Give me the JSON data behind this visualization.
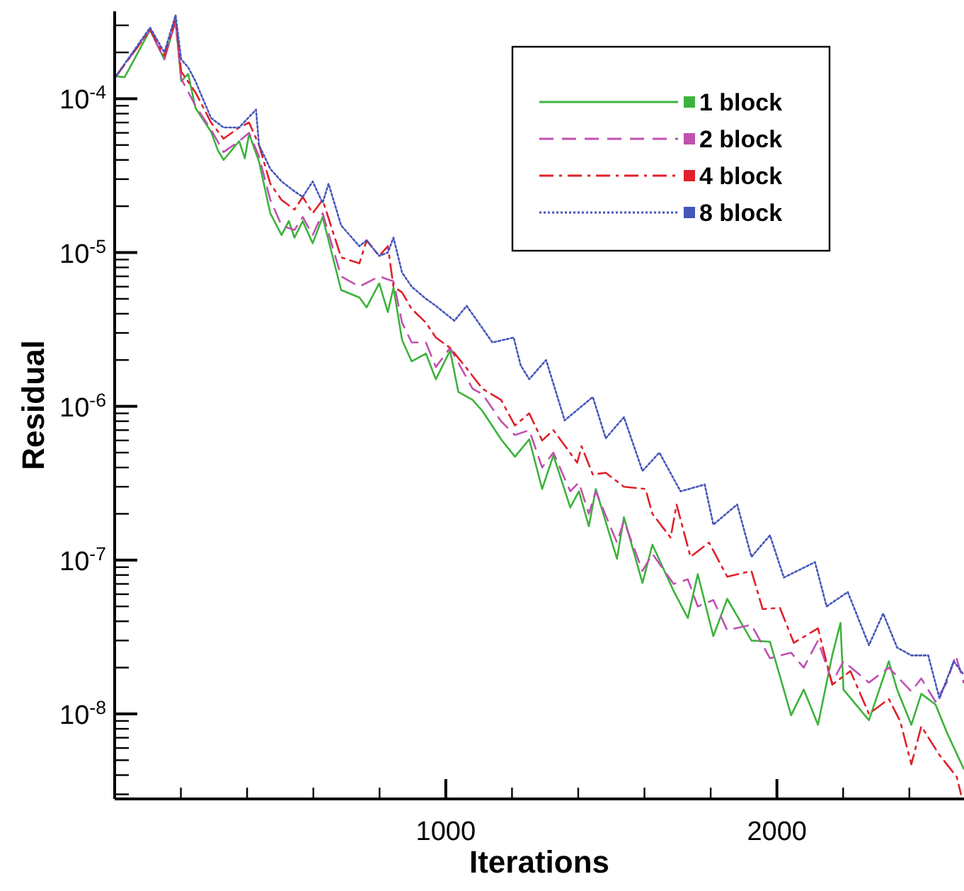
{
  "chart_data": {
    "type": "line",
    "xlabel": "Iterations",
    "ylabel": "Residual",
    "log": "y",
    "grid": false,
    "legend": "top right",
    "marker": "none",
    "xlim": [
      0,
      2565
    ],
    "ylim": [
      2.8e-09,
      0.00037
    ],
    "xticks": [
      {
        "value": 200,
        "label": null
      },
      {
        "value": 400,
        "label": null
      },
      {
        "value": 600,
        "label": null
      },
      {
        "value": 800,
        "label": null
      },
      1000,
      {
        "value": 1200,
        "label": null
      },
      {
        "value": 1400,
        "label": null
      },
      {
        "value": 1600,
        "label": null
      },
      {
        "value": 1800,
        "label": null
      },
      2000,
      {
        "value": 2200,
        "label": null
      },
      {
        "value": 2400,
        "label": null
      }
    ],
    "yticks": [
      {
        "value": 3e-09,
        "label": null
      },
      {
        "value": 4e-09,
        "label": null
      },
      {
        "value": 5e-09,
        "label": null
      },
      {
        "value": 6e-09,
        "label": null
      },
      {
        "value": 7e-09,
        "label": null
      },
      {
        "value": 8e-09,
        "label": null
      },
      {
        "value": 9e-09,
        "label": null
      },
      {
        "value": 1e-08,
        "label": "10$^{-8}$"
      },
      {
        "value": 2e-08,
        "label": null
      },
      {
        "value": 3e-08,
        "label": null
      },
      {
        "value": 4e-08,
        "label": null
      },
      {
        "value": 5e-08,
        "label": null
      },
      {
        "value": 6e-08,
        "label": null
      },
      {
        "value": 7e-08,
        "label": null
      },
      {
        "value": 8e-08,
        "label": null
      },
      {
        "value": 9e-08,
        "label": null
      },
      {
        "value": 1e-07,
        "label": "10$^{-7}$"
      },
      {
        "value": 2e-07,
        "label": null
      },
      {
        "value": 3e-07,
        "label": null
      },
      {
        "value": 4e-07,
        "label": null
      },
      {
        "value": 5e-07,
        "label": null
      },
      {
        "value": 6e-07,
        "label": null
      },
      {
        "value": 7e-07,
        "label": null
      },
      {
        "value": 8e-07,
        "label": null
      },
      {
        "value": 9e-07,
        "label": null
      },
      {
        "value": 1e-06,
        "label": "10$^{-6}$"
      },
      {
        "value": 2e-06,
        "label": null
      },
      {
        "value": 3e-06,
        "label": null
      },
      {
        "value": 4e-06,
        "label": null
      },
      {
        "value": 5e-06,
        "label": null
      },
      {
        "value": 6e-06,
        "label": null
      },
      {
        "value": 7e-06,
        "label": null
      },
      {
        "value": 8e-06,
        "label": null
      },
      {
        "value": 9e-06,
        "label": null
      },
      {
        "value": 1e-05,
        "label": "10$^{-5}$"
      },
      {
        "value": 2e-05,
        "label": null
      },
      {
        "value": 3e-05,
        "label": null
      },
      {
        "value": 4e-05,
        "label": null
      },
      {
        "value": 5e-05,
        "label": null
      },
      {
        "value": 6e-05,
        "label": null
      },
      {
        "value": 7e-05,
        "label": null
      },
      {
        "value": 8e-05,
        "label": null
      },
      {
        "value": 9e-05,
        "label": null
      },
      {
        "value": 0.0001,
        "label": "10$^{-4}$"
      },
      {
        "value": 0.0002,
        "label": null
      },
      {
        "value": 0.0003,
        "label": null
      }
    ],
    "series": [
      {
        "name": "1 block",
        "color": "#3cb33c",
        "line_style": "solid",
        "x": [
          4,
          30,
          107,
          150,
          184,
          201,
          222,
          244,
          291,
          312,
          329,
          376,
          393,
          406,
          436,
          470,
          504,
          526,
          543,
          568,
          598,
          628,
          684,
          739,
          761,
          799,
          825,
          842,
          868,
          897,
          940,
          970,
          1013,
          1038,
          1081,
          1111,
          1167,
          1209,
          1252,
          1291,
          1325,
          1376,
          1402,
          1432,
          1453,
          1517,
          1538,
          1594,
          1624,
          1688,
          1731,
          1761,
          1808,
          1850,
          1923,
          1979,
          2043,
          2081,
          2124,
          2167,
          2192,
          2201,
          2278,
          2338,
          2363,
          2406,
          2436,
          2479,
          2513,
          2564
        ],
        "values": [
          0.00014,
          0.000138,
          0.00028,
          0.00018,
          0.00032,
          0.00013,
          0.000145,
          8.7e-05,
          6.1e-05,
          4.6e-05,
          4e-05,
          5.3e-05,
          4.1e-05,
          5.9e-05,
          3.9e-05,
          1.8e-05,
          1.3e-05,
          1.6e-05,
          1.25e-05,
          1.6e-05,
          1.15e-05,
          1.7e-05,
          5.7e-06,
          5.1e-06,
          4.4e-06,
          6.3e-06,
          4.1e-06,
          5.9e-06,
          2.7e-06,
          1.96e-06,
          2.2e-06,
          1.5e-06,
          2.3e-06,
          1.24e-06,
          1.1e-06,
          9.3e-07,
          6.1e-07,
          4.7e-07,
          6.1e-07,
          2.9e-07,
          4.8e-07,
          2.2e-07,
          2.8e-07,
          1.66e-07,
          2.9e-07,
          1.02e-07,
          1.9e-07,
          7.1e-08,
          1.26e-07,
          6.3e-08,
          4.2e-08,
          8.1e-08,
          3.2e-08,
          5.6e-08,
          3e-08,
          2.95e-08,
          9.8e-09,
          1.44e-08,
          8.5e-09,
          2.4e-08,
          3.9e-08,
          1.44e-08,
          9.1e-09,
          2.2e-08,
          1.44e-08,
          8.5e-09,
          1.35e-08,
          1.15e-08,
          7.6e-09,
          4.4e-09
        ]
      },
      {
        "name": "2 block",
        "color": "#c050b0",
        "line_style": "dashed",
        "x": [
          4,
          107,
          150,
          184,
          201,
          244,
          291,
          329,
          376,
          406,
          436,
          470,
          504,
          543,
          568,
          598,
          628,
          684,
          739,
          799,
          842,
          868,
          897,
          940,
          970,
          1013,
          1081,
          1111,
          1167,
          1209,
          1252,
          1291,
          1325,
          1376,
          1402,
          1432,
          1453,
          1517,
          1538,
          1594,
          1624,
          1688,
          1731,
          1761,
          1808,
          1850,
          1923,
          1979,
          2043,
          2081,
          2124,
          2167,
          2201,
          2278,
          2338,
          2406,
          2436,
          2479,
          2513,
          2540,
          2564
        ],
        "values": [
          0.00014,
          0.00028,
          0.00018,
          0.00032,
          0.000135,
          9e-05,
          6.3e-05,
          4.5e-05,
          5.3e-05,
          6e-05,
          4.2e-05,
          2.2e-05,
          1.5e-05,
          1.4e-05,
          1.7e-05,
          1.3e-05,
          1.8e-05,
          7e-06,
          6e-06,
          7e-06,
          6.5e-06,
          3.5e-06,
          2.6e-06,
          2.6e-06,
          1.8e-06,
          2.4e-06,
          1.3e-06,
          1.2e-06,
          8e-07,
          6.5e-07,
          7e-07,
          4e-07,
          5e-07,
          2.8e-07,
          3.2e-07,
          2e-07,
          2.8e-07,
          1.3e-07,
          1.8e-07,
          8.5e-08,
          1.1e-07,
          7e-08,
          7.5e-08,
          5e-08,
          5.5e-08,
          3.5e-08,
          3.8e-08,
          2.3e-08,
          2.5e-08,
          2e-08,
          3e-08,
          1.6e-08,
          2.2e-08,
          1.6e-08,
          2e-08,
          1.4e-08,
          1.7e-08,
          1.2e-08,
          1.6e-08,
          2.4e-08,
          1.6e-08
        ]
      },
      {
        "name": "4 block",
        "color": "#e0202a",
        "line_style": "dashdot",
        "x": [
          4,
          107,
          150,
          184,
          201,
          244,
          291,
          329,
          376,
          406,
          436,
          470,
          504,
          543,
          568,
          598,
          628,
          684,
          739,
          761,
          799,
          825,
          842,
          868,
          897,
          940,
          970,
          1013,
          1060,
          1111,
          1167,
          1209,
          1252,
          1291,
          1325,
          1397,
          1410,
          1444,
          1483,
          1538,
          1603,
          1624,
          1679,
          1697,
          1739,
          1795,
          1850,
          1923,
          1957,
          2009,
          2051,
          2124,
          2167,
          2222,
          2278,
          2338,
          2372,
          2406,
          2436,
          2491,
          2543,
          2556
        ],
        "values": [
          0.00014,
          0.00028,
          0.00019,
          0.00033,
          0.00015,
          0.00011,
          7e-05,
          5.5e-05,
          6.5e-05,
          7e-05,
          5e-05,
          2.8e-05,
          2.2e-05,
          1.9e-05,
          2.3e-05,
          1.8e-05,
          2.2e-05,
          9.3e-06,
          8.5e-06,
          1.2e-05,
          9.5e-06,
          1.1e-05,
          6e-06,
          5.5e-06,
          4.3e-06,
          3.5e-06,
          2.8e-06,
          2.4e-06,
          1.8e-06,
          1.3e-06,
          1.1e-06,
          7.5e-07,
          9e-07,
          6e-07,
          7e-07,
          4.3e-07,
          5.5e-07,
          3.6e-07,
          3.7e-07,
          3e-07,
          2.9e-07,
          2e-07,
          1.4e-07,
          2.3e-07,
          1.05e-07,
          1.3e-07,
          7.8e-08,
          8.5e-08,
          4.8e-08,
          4.9e-08,
          2.9e-08,
          3.6e-08,
          1.55e-08,
          1.9e-08,
          1e-08,
          1.25e-08,
          9e-09,
          4.7e-09,
          8.3e-09,
          5.4e-09,
          3.9e-09,
          3e-09
        ]
      },
      {
        "name": "8 block",
        "color": "#4455bb",
        "line_style": "dotted",
        "x": [
          4,
          107,
          150,
          184,
          201,
          222,
          244,
          291,
          329,
          376,
          427,
          436,
          470,
          504,
          543,
          568,
          598,
          628,
          646,
          684,
          739,
          761,
          799,
          825,
          842,
          868,
          897,
          940,
          970,
          1026,
          1063,
          1141,
          1205,
          1226,
          1252,
          1303,
          1359,
          1444,
          1483,
          1538,
          1594,
          1645,
          1709,
          1782,
          1808,
          1880,
          1923,
          1979,
          2021,
          2115,
          2150,
          2214,
          2278,
          2321,
          2363,
          2406,
          2457,
          2491,
          2534,
          2564
        ],
        "values": [
          0.00014,
          0.00029,
          0.0002,
          0.00035,
          0.00018,
          0.00016,
          0.00013,
          7.5e-05,
          6.5e-05,
          6.5e-05,
          8.5e-05,
          5e-05,
          3.5e-05,
          2.9e-05,
          2.5e-05,
          2.3e-05,
          2.9e-05,
          2.1e-05,
          2.8e-05,
          1.5e-05,
          1.1e-05,
          1.2e-05,
          9.5e-06,
          1e-05,
          1.25e-05,
          7.4e-06,
          6e-06,
          5e-06,
          4.5e-06,
          3.6e-06,
          4.5e-06,
          2.6e-06,
          2.8e-06,
          1.85e-06,
          1.5e-06,
          2e-06,
          8.1e-07,
          1.15e-06,
          6.2e-07,
          8.5e-07,
          3.8e-07,
          5e-07,
          2.8e-07,
          3.1e-07,
          1.7e-07,
          2.3e-07,
          1.05e-07,
          1.45e-07,
          7.7e-08,
          9.7e-08,
          5e-08,
          6.2e-08,
          2.8e-08,
          4.5e-08,
          2.7e-08,
          2.4e-08,
          2.4e-08,
          1.26e-08,
          2.2e-08,
          1.8e-08
        ]
      }
    ]
  }
}
